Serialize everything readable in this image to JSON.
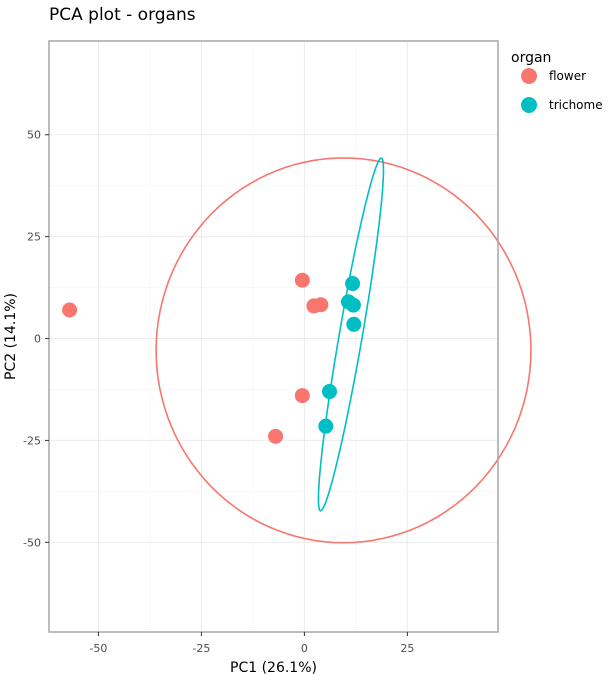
{
  "chart_data": {
    "type": "scatter",
    "title": "PCA plot - organs",
    "xlabel": "PC1 (26.1%)",
    "ylabel": "PC2 (14.1%)",
    "xlim": [
      -62,
      47
    ],
    "ylim": [
      -72,
      73
    ],
    "x_ticks": [
      -50,
      -25,
      0,
      25
    ],
    "y_ticks": [
      -50,
      -25,
      0,
      25,
      50
    ],
    "grid": true,
    "legend": {
      "title": "organ",
      "position": "right"
    },
    "series": [
      {
        "name": "flower",
        "color": "#F8766D",
        "points": [
          {
            "x": -57,
            "y": 7
          },
          {
            "x": -0.5,
            "y": 14.3
          },
          {
            "x": 2.3,
            "y": 8
          },
          {
            "x": 4,
            "y": 8.3
          },
          {
            "x": -0.5,
            "y": -14
          },
          {
            "x": -7,
            "y": -24
          }
        ],
        "ellipse": {
          "cx": 9.5,
          "cy": -2.9,
          "rx": 45.5,
          "ry": 47.2,
          "angle_deg": 0
        }
      },
      {
        "name": "trichome",
        "color": "#00BFC4",
        "points": [
          {
            "x": 11.7,
            "y": 13.5
          },
          {
            "x": 10.7,
            "y": 9
          },
          {
            "x": 11.9,
            "y": 8.2
          },
          {
            "x": 12,
            "y": 3.5
          },
          {
            "x": 6.1,
            "y": -13
          },
          {
            "x": 5.2,
            "y": -21.5
          }
        ],
        "ellipse": {
          "cx": 11.3,
          "cy": 1,
          "rx": 43.9,
          "ry": 2.8,
          "angle_deg": 80.3
        }
      }
    ]
  }
}
